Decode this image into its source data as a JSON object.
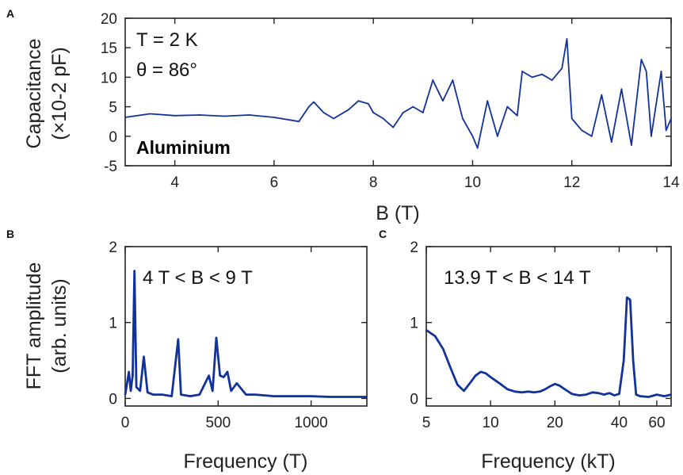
{
  "chart_data": [
    {
      "panel": "A",
      "type": "line",
      "annotation_T": "T = 2 K",
      "annotation_theta": "θ = 86°",
      "material_label": "Aluminium",
      "xlabel": "B (T)",
      "ylabel_line1": "Capacitance",
      "ylabel_line2": "(×10-2 pF)",
      "xlim": [
        3,
        14
      ],
      "ylim": [
        -5,
        20
      ],
      "xticks": [
        4,
        6,
        8,
        10,
        12,
        14
      ],
      "yticks": [
        -5,
        0,
        5,
        10,
        15,
        20
      ],
      "color": "#12329b",
      "series": [
        {
          "x": [
            3.0,
            3.5,
            4.0,
            4.5,
            5.0,
            5.5,
            6.0,
            6.5,
            6.7,
            6.8,
            7.0,
            7.2,
            7.5,
            7.7,
            7.9,
            8.0,
            8.2,
            8.4,
            8.6,
            8.8,
            9.0,
            9.2,
            9.4,
            9.6,
            9.8,
            10.0,
            10.1,
            10.3,
            10.5,
            10.7,
            10.9,
            11.0,
            11.2,
            11.4,
            11.6,
            11.8,
            11.9,
            12.0,
            12.2,
            12.4,
            12.6,
            12.8,
            13.0,
            13.2,
            13.4,
            13.5,
            13.6,
            13.8,
            13.9,
            14.0
          ],
          "y": [
            3.2,
            3.8,
            3.5,
            3.6,
            3.4,
            3.6,
            3.2,
            2.5,
            5.0,
            5.8,
            4.0,
            3.0,
            4.5,
            6.0,
            5.5,
            4.0,
            3.0,
            1.5,
            4.0,
            5.0,
            4.0,
            9.5,
            6.0,
            9.5,
            3.0,
            0.0,
            -2.0,
            6.0,
            0.0,
            5.0,
            3.5,
            11.0,
            10.0,
            10.5,
            9.5,
            11.5,
            16.5,
            3.0,
            1.0,
            0.0,
            7.0,
            -1.0,
            8.0,
            -1.5,
            13.0,
            11.0,
            0.0,
            11.0,
            1.0,
            3.0
          ]
        }
      ]
    },
    {
      "panel": "B",
      "type": "line",
      "annotation": "4 T < B < 9 T",
      "ylabel_line1": "FFT amplitude",
      "ylabel_line2": "(arb. units)",
      "xlabel": "Frequency (T)",
      "xlim": [
        0,
        1300
      ],
      "ylim": [
        -0.1,
        2
      ],
      "xticks": [
        0,
        500,
        1000
      ],
      "yticks": [
        0,
        1,
        2
      ],
      "color": "#12329b",
      "series": [
        {
          "x": [
            0,
            20,
            30,
            40,
            50,
            60,
            80,
            100,
            120,
            150,
            200,
            250,
            285,
            300,
            350,
            400,
            450,
            470,
            490,
            510,
            530,
            550,
            570,
            600,
            650,
            700,
            800,
            900,
            1000,
            1100,
            1200,
            1300
          ],
          "y": [
            0.05,
            0.35,
            0.1,
            0.3,
            1.68,
            0.15,
            0.1,
            0.55,
            0.08,
            0.05,
            0.05,
            0.03,
            0.78,
            0.05,
            0.03,
            0.05,
            0.3,
            0.1,
            0.8,
            0.3,
            0.28,
            0.35,
            0.1,
            0.2,
            0.05,
            0.05,
            0.03,
            0.03,
            0.03,
            0.02,
            0.02,
            0.02
          ]
        }
      ]
    },
    {
      "panel": "C",
      "type": "line",
      "annotation": "13.9 T < B < 14 T",
      "xlabel": "Frequency (kT)",
      "xscale": "log",
      "xlim": [
        5,
        70
      ],
      "ylim": [
        -0.1,
        2
      ],
      "xticks": [
        5,
        10,
        20,
        40,
        60
      ],
      "yticks": [
        0,
        1,
        2
      ],
      "color": "#12329b",
      "series": [
        {
          "x": [
            5.0,
            5.5,
            6.0,
            6.5,
            7.0,
            7.5,
            8.0,
            8.5,
            9.0,
            9.5,
            10.0,
            11.0,
            12.0,
            13.0,
            14.0,
            15.0,
            16.0,
            17.0,
            18.0,
            19.0,
            20.0,
            21.0,
            22.0,
            24.0,
            26.0,
            28.0,
            30.0,
            32.0,
            34.0,
            36.0,
            38.0,
            40.0,
            42.0,
            43.5,
            45.0,
            46.5,
            48.0,
            50.0,
            55.0,
            60.0,
            65.0,
            70.0
          ],
          "y": [
            0.9,
            0.82,
            0.65,
            0.4,
            0.18,
            0.1,
            0.2,
            0.3,
            0.35,
            0.33,
            0.28,
            0.2,
            0.12,
            0.09,
            0.08,
            0.09,
            0.08,
            0.09,
            0.12,
            0.16,
            0.19,
            0.17,
            0.13,
            0.06,
            0.04,
            0.05,
            0.08,
            0.07,
            0.05,
            0.07,
            0.04,
            0.06,
            0.5,
            1.33,
            1.3,
            0.5,
            0.05,
            0.03,
            0.02,
            0.05,
            0.03,
            0.05
          ]
        }
      ]
    }
  ]
}
